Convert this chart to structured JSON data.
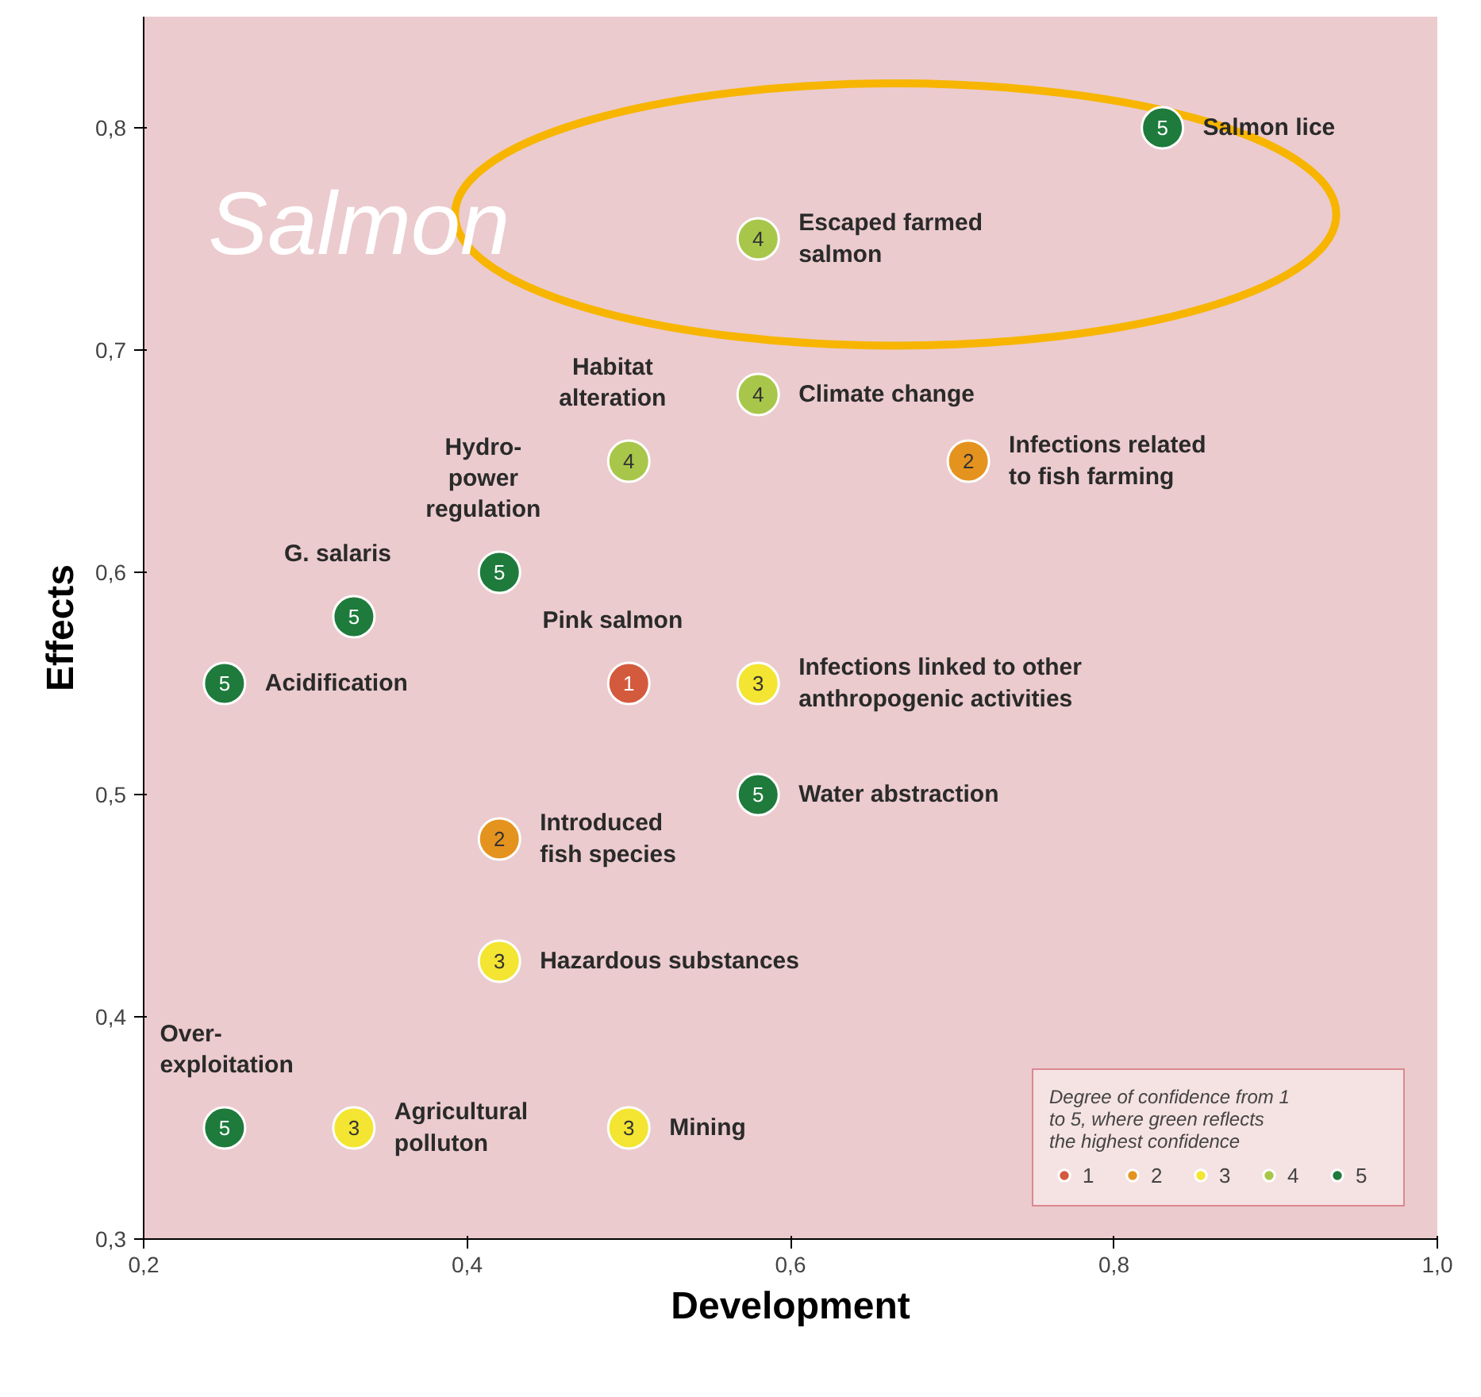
{
  "chart_data": {
    "type": "scatter",
    "title": "Salmon",
    "xlabel": "Development",
    "ylabel": "Effects",
    "legend_title": "Degree of confidence from 1 to 5, where green reflects the highest confidence",
    "legend": "bottom right",
    "grid": false,
    "marker": "circle",
    "xlim": [
      0.2,
      1.0
    ],
    "ylim": [
      0.3,
      0.85
    ],
    "xticks": [
      {
        "value": 0.2,
        "label": "0,2"
      },
      {
        "value": 0.4,
        "label": "0,4"
      },
      {
        "value": 0.6,
        "label": "0,6"
      },
      {
        "value": 0.8,
        "label": "0,8"
      },
      {
        "value": 1.0,
        "label": "1,0"
      }
    ],
    "yticks": [
      {
        "value": 0.3,
        "label": "0,3"
      },
      {
        "value": 0.4,
        "label": "0,4"
      },
      {
        "value": 0.5,
        "label": "0,5"
      },
      {
        "value": 0.6,
        "label": "0,6"
      },
      {
        "value": 0.7,
        "label": "0,7"
      },
      {
        "value": 0.8,
        "label": "0,8"
      }
    ],
    "series": [
      {
        "name": "1",
        "color": "#d45a3e",
        "x": [
          0.5
        ],
        "values": [
          0.55
        ]
      },
      {
        "name": "2",
        "color": "#e5931f",
        "x": [
          0.71,
          0.42
        ],
        "values": [
          0.65,
          0.48
        ]
      },
      {
        "name": "3",
        "color": "#f3e531",
        "x": [
          0.58,
          0.42,
          0.33,
          0.5
        ],
        "values": [
          0.55,
          0.425,
          0.35,
          0.35
        ]
      },
      {
        "name": "4",
        "color": "#a8c64a",
        "x": [
          0.58,
          0.58,
          0.5
        ],
        "values": [
          0.75,
          0.68,
          0.65
        ]
      },
      {
        "name": "5",
        "color": "#1e7b3c",
        "x": [
          0.83,
          0.42,
          0.33,
          0.25,
          0.58,
          0.25
        ],
        "values": [
          0.8,
          0.6,
          0.58,
          0.55,
          0.5,
          0.35
        ]
      }
    ],
    "annotations": [
      {
        "text": "Salmon lice",
        "x": 0.83,
        "y": 0.8
      },
      {
        "text": "Escaped farmed\nsalmon",
        "x": 0.58,
        "y": 0.75
      },
      {
        "text": "Climate change",
        "x": 0.58,
        "y": 0.68
      },
      {
        "text": "Habitat\nalteration",
        "x": 0.5,
        "y": 0.65
      },
      {
        "text": "Infections related\nto fish farming",
        "x": 0.71,
        "y": 0.65
      },
      {
        "text": "Hydro-\npower\nregulation",
        "x": 0.42,
        "y": 0.6
      },
      {
        "text": "G. salaris",
        "x": 0.33,
        "y": 0.58
      },
      {
        "text": "Acidification",
        "x": 0.25,
        "y": 0.55
      },
      {
        "text": "Pink salmon",
        "x": 0.5,
        "y": 0.55
      },
      {
        "text": "Infections linked to other\nanthropogenic activities",
        "x": 0.58,
        "y": 0.55
      },
      {
        "text": "Water abstraction",
        "x": 0.58,
        "y": 0.5
      },
      {
        "text": "Introduced\nfish species",
        "x": 0.42,
        "y": 0.48
      },
      {
        "text": "Hazardous substances",
        "x": 0.42,
        "y": 0.425
      },
      {
        "text": "Over-\nexploitation",
        "x": 0.25,
        "y": 0.35
      },
      {
        "text": "Agricultural\npolluton",
        "x": 0.33,
        "y": 0.35
      },
      {
        "text": "Mining",
        "x": 0.5,
        "y": 0.35
      }
    ]
  }
}
